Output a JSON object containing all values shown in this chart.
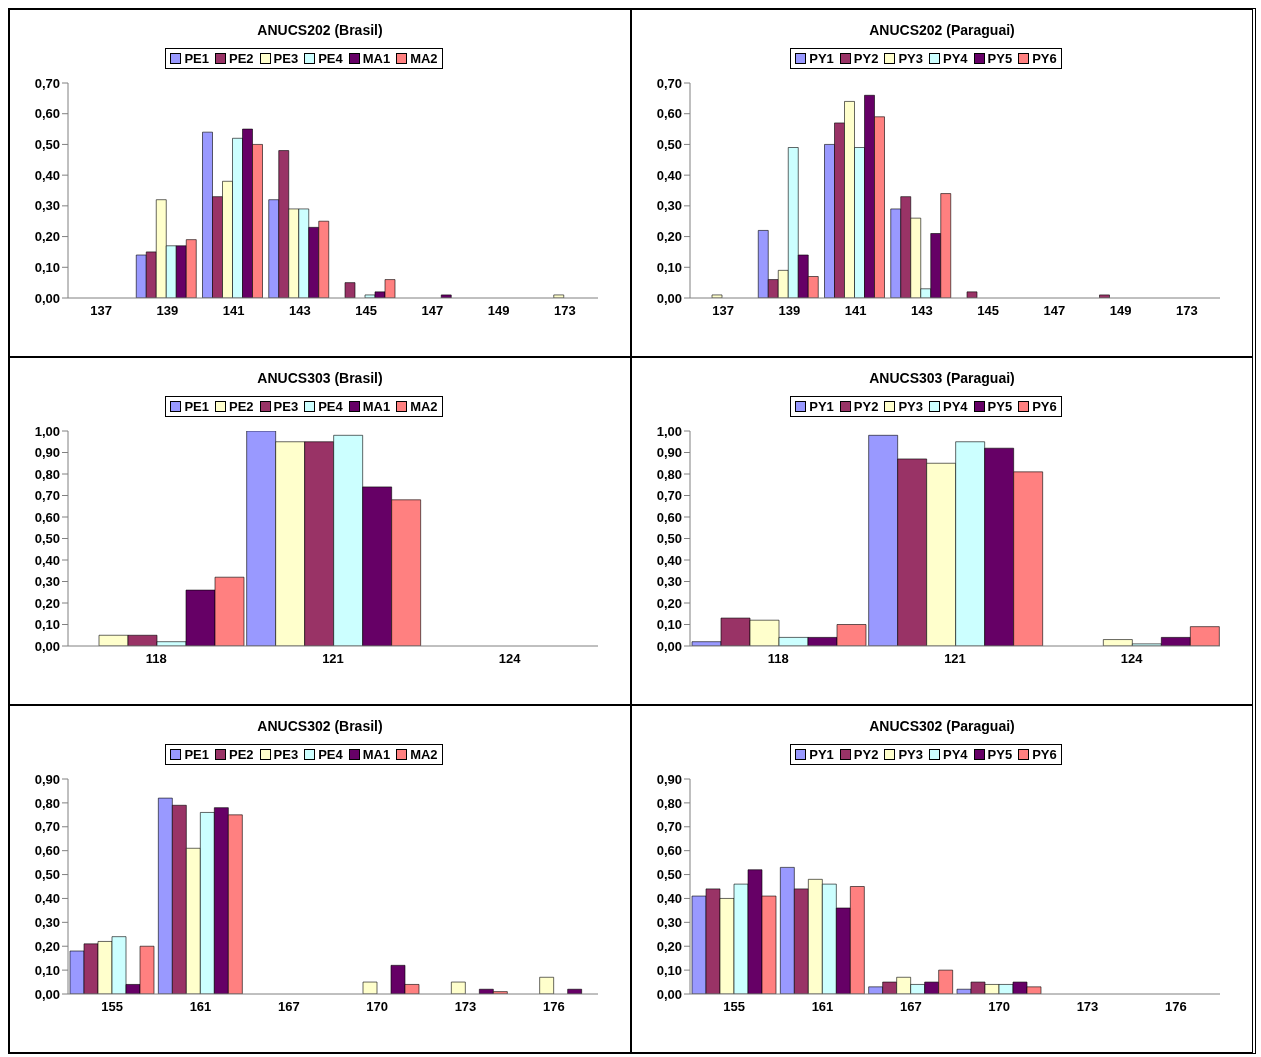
{
  "chart_data": [
    {
      "type": "bar",
      "title": "ANUCS202 (Brasil)",
      "legend": "top",
      "categories": [
        "137",
        "139",
        "141",
        "143",
        "145",
        "147",
        "149",
        "173"
      ],
      "ylim": [
        0,
        0.7
      ],
      "yticks": [
        {
          "value": 0,
          "label": "0,00"
        },
        {
          "value": 0.1,
          "label": "0,10"
        },
        {
          "value": 0.2,
          "label": "0,20"
        },
        {
          "value": 0.3,
          "label": "0,30"
        },
        {
          "value": 0.4,
          "label": "0,40"
        },
        {
          "value": 0.5,
          "label": "0,50"
        },
        {
          "value": 0.6,
          "label": "0,60"
        },
        {
          "value": 0.7,
          "label": "0,70"
        }
      ],
      "series": [
        {
          "name": "PE1",
          "color": "#9999ff",
          "values": [
            0,
            0.14,
            0.54,
            0.32,
            0,
            0,
            0,
            0
          ]
        },
        {
          "name": "PE2",
          "color": "#993366",
          "values": [
            0,
            0.15,
            0.33,
            0.48,
            0.05,
            0,
            0,
            0
          ]
        },
        {
          "name": "PE3",
          "color": "#ffffcc",
          "values": [
            0,
            0.32,
            0.38,
            0.29,
            0,
            0,
            0,
            0.01
          ]
        },
        {
          "name": "PE4",
          "color": "#ccffff",
          "values": [
            0,
            0.17,
            0.52,
            0.29,
            0.01,
            0,
            0,
            0
          ]
        },
        {
          "name": "MA1",
          "color": "#660066",
          "values": [
            0,
            0.17,
            0.55,
            0.23,
            0.02,
            0.01,
            0,
            0
          ]
        },
        {
          "name": "MA2",
          "color": "#ff8080",
          "values": [
            0,
            0.19,
            0.5,
            0.25,
            0.06,
            0,
            0,
            0
          ]
        }
      ]
    },
    {
      "type": "bar",
      "title": "ANUCS202 (Paraguai)",
      "legend": "top",
      "categories": [
        "137",
        "139",
        "141",
        "143",
        "145",
        "147",
        "149",
        "173"
      ],
      "ylim": [
        0,
        0.7
      ],
      "yticks": [
        {
          "value": 0,
          "label": "0,00"
        },
        {
          "value": 0.1,
          "label": "0,10"
        },
        {
          "value": 0.2,
          "label": "0,20"
        },
        {
          "value": 0.3,
          "label": "0,30"
        },
        {
          "value": 0.4,
          "label": "0,40"
        },
        {
          "value": 0.5,
          "label": "0,50"
        },
        {
          "value": 0.6,
          "label": "0,60"
        },
        {
          "value": 0.7,
          "label": "0,70"
        }
      ],
      "series": [
        {
          "name": "PY1",
          "color": "#9999ff",
          "values": [
            0,
            0.22,
            0.5,
            0.29,
            0,
            0,
            0,
            0
          ]
        },
        {
          "name": "PY2",
          "color": "#993366",
          "values": [
            0,
            0.06,
            0.57,
            0.33,
            0.02,
            0,
            0.01,
            0
          ]
        },
        {
          "name": "PY3",
          "color": "#ffffcc",
          "values": [
            0.01,
            0.09,
            0.64,
            0.26,
            0,
            0,
            0,
            0
          ]
        },
        {
          "name": "PY4",
          "color": "#ccffff",
          "values": [
            0,
            0.49,
            0.49,
            0.03,
            0,
            0,
            0,
            0
          ]
        },
        {
          "name": "PY5",
          "color": "#660066",
          "values": [
            0,
            0.14,
            0.66,
            0.21,
            0,
            0,
            0,
            0
          ]
        },
        {
          "name": "PY6",
          "color": "#ff8080",
          "values": [
            0,
            0.07,
            0.59,
            0.34,
            0,
            0,
            0,
            0
          ]
        }
      ]
    },
    {
      "type": "bar",
      "title": "ANUCS303 (Brasil)",
      "legend": "top",
      "categories": [
        "118",
        "121",
        "124"
      ],
      "ylim": [
        0,
        1
      ],
      "yticks": [
        {
          "value": 0,
          "label": "0,00"
        },
        {
          "value": 0.1,
          "label": "0,10"
        },
        {
          "value": 0.2,
          "label": "0,20"
        },
        {
          "value": 0.3,
          "label": "0,30"
        },
        {
          "value": 0.4,
          "label": "0,40"
        },
        {
          "value": 0.5,
          "label": "0,50"
        },
        {
          "value": 0.6,
          "label": "0,60"
        },
        {
          "value": 0.7,
          "label": "0,70"
        },
        {
          "value": 0.8,
          "label": "0,80"
        },
        {
          "value": 0.9,
          "label": "0,90"
        },
        {
          "value": 1,
          "label": "1,00"
        }
      ],
      "series": [
        {
          "name": "PE1",
          "color": "#9999ff",
          "values": [
            0,
            1,
            0
          ]
        },
        {
          "name": "PE2",
          "color": "#ffffcc",
          "values": [
            0.05,
            0.95,
            0
          ]
        },
        {
          "name": "PE3",
          "color": "#993366",
          "values": [
            0.05,
            0.95,
            0
          ]
        },
        {
          "name": "PE4",
          "color": "#ccffff",
          "values": [
            0.02,
            0.98,
            0
          ]
        },
        {
          "name": "MA1",
          "color": "#660066",
          "values": [
            0.26,
            0.74,
            0
          ]
        },
        {
          "name": "MA2",
          "color": "#ff8080",
          "values": [
            0.32,
            0.68,
            0
          ]
        }
      ]
    },
    {
      "type": "bar",
      "title": "ANUCS303 (Paraguai)",
      "legend": "top",
      "categories": [
        "118",
        "121",
        "124"
      ],
      "ylim": [
        0,
        1
      ],
      "yticks": [
        {
          "value": 0,
          "label": "0,00"
        },
        {
          "value": 0.1,
          "label": "0,10"
        },
        {
          "value": 0.2,
          "label": "0,20"
        },
        {
          "value": 0.3,
          "label": "0,30"
        },
        {
          "value": 0.4,
          "label": "0,40"
        },
        {
          "value": 0.5,
          "label": "0,50"
        },
        {
          "value": 0.6,
          "label": "0,60"
        },
        {
          "value": 0.7,
          "label": "0,70"
        },
        {
          "value": 0.8,
          "label": "0,80"
        },
        {
          "value": 0.9,
          "label": "0,90"
        },
        {
          "value": 1,
          "label": "1,00"
        }
      ],
      "series": [
        {
          "name": "PY1",
          "color": "#9999ff",
          "values": [
            0.02,
            0.98,
            0
          ]
        },
        {
          "name": "PY2",
          "color": "#993366",
          "values": [
            0.13,
            0.87,
            0
          ]
        },
        {
          "name": "PY3",
          "color": "#ffffcc",
          "values": [
            0.12,
            0.85,
            0.03
          ]
        },
        {
          "name": "PY4",
          "color": "#ccffff",
          "values": [
            0.04,
            0.95,
            0.01
          ]
        },
        {
          "name": "PY5",
          "color": "#660066",
          "values": [
            0.04,
            0.92,
            0.04
          ]
        },
        {
          "name": "PY6",
          "color": "#ff8080",
          "values": [
            0.1,
            0.81,
            0.09
          ]
        }
      ]
    },
    {
      "type": "bar",
      "title": "ANUCS302 (Brasil)",
      "legend": "top",
      "categories": [
        "155",
        "161",
        "167",
        "170",
        "173",
        "176"
      ],
      "ylim": [
        0,
        0.9
      ],
      "yticks": [
        {
          "value": 0,
          "label": "0,00"
        },
        {
          "value": 0.1,
          "label": "0,10"
        },
        {
          "value": 0.2,
          "label": "0,20"
        },
        {
          "value": 0.3,
          "label": "0,30"
        },
        {
          "value": 0.4,
          "label": "0,40"
        },
        {
          "value": 0.5,
          "label": "0,50"
        },
        {
          "value": 0.6,
          "label": "0,60"
        },
        {
          "value": 0.7,
          "label": "0,70"
        },
        {
          "value": 0.8,
          "label": "0,80"
        },
        {
          "value": 0.9,
          "label": "0,90"
        }
      ],
      "series": [
        {
          "name": "PE1",
          "color": "#9999ff",
          "values": [
            0.18,
            0.82,
            0,
            0,
            0,
            0
          ]
        },
        {
          "name": "PE2",
          "color": "#993366",
          "values": [
            0.21,
            0.79,
            0,
            0,
            0,
            0
          ]
        },
        {
          "name": "PE3",
          "color": "#ffffcc",
          "values": [
            0.22,
            0.61,
            0,
            0.05,
            0.05,
            0.07
          ]
        },
        {
          "name": "PE4",
          "color": "#ccffff",
          "values": [
            0.24,
            0.76,
            0,
            0,
            0,
            0
          ]
        },
        {
          "name": "MA1",
          "color": "#660066",
          "values": [
            0.04,
            0.78,
            0,
            0.12,
            0.02,
            0.02
          ]
        },
        {
          "name": "MA2",
          "color": "#ff8080",
          "values": [
            0.2,
            0.75,
            0,
            0.04,
            0.01,
            0
          ]
        }
      ]
    },
    {
      "type": "bar",
      "title": "ANUCS302 (Paraguai)",
      "legend": "top",
      "categories": [
        "155",
        "161",
        "167",
        "170",
        "173",
        "176"
      ],
      "ylim": [
        0,
        0.9
      ],
      "yticks": [
        {
          "value": 0,
          "label": "0,00"
        },
        {
          "value": 0.1,
          "label": "0,10"
        },
        {
          "value": 0.2,
          "label": "0,20"
        },
        {
          "value": 0.3,
          "label": "0,30"
        },
        {
          "value": 0.4,
          "label": "0,40"
        },
        {
          "value": 0.5,
          "label": "0,50"
        },
        {
          "value": 0.6,
          "label": "0,60"
        },
        {
          "value": 0.7,
          "label": "0,70"
        },
        {
          "value": 0.8,
          "label": "0,80"
        },
        {
          "value": 0.9,
          "label": "0,90"
        }
      ],
      "series": [
        {
          "name": "PY1",
          "color": "#9999ff",
          "values": [
            0.41,
            0.53,
            0.03,
            0.02,
            0,
            0
          ]
        },
        {
          "name": "PY2",
          "color": "#993366",
          "values": [
            0.44,
            0.44,
            0.05,
            0.05,
            0,
            0
          ]
        },
        {
          "name": "PY3",
          "color": "#ffffcc",
          "values": [
            0.4,
            0.48,
            0.07,
            0.04,
            0,
            0
          ]
        },
        {
          "name": "PY4",
          "color": "#ccffff",
          "values": [
            0.46,
            0.46,
            0.04,
            0.04,
            0,
            0
          ]
        },
        {
          "name": "PY5",
          "color": "#660066",
          "values": [
            0.52,
            0.36,
            0.05,
            0.05,
            0,
            0
          ]
        },
        {
          "name": "PY6",
          "color": "#ff8080",
          "values": [
            0.41,
            0.45,
            0.1,
            0.03,
            0,
            0
          ]
        }
      ]
    }
  ]
}
